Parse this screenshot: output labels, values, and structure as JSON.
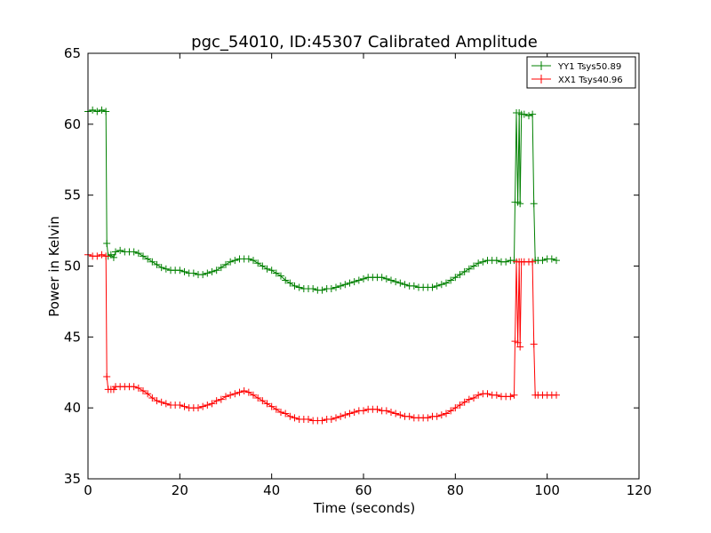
{
  "chart_data": {
    "type": "line",
    "title": "pgc_54010, ID:45307 Calibrated Amplitude",
    "xlabel": "Time (seconds)",
    "ylabel": "Power in Kelvin",
    "xlim": [
      0,
      120
    ],
    "ylim": [
      35,
      65
    ],
    "xticks": [
      "0",
      "20",
      "40",
      "60",
      "80",
      "100",
      "120"
    ],
    "yticks": [
      "35",
      "40",
      "45",
      "50",
      "55",
      "60",
      "65"
    ],
    "grid": false,
    "legend_position": "top-right",
    "marker": "+",
    "series": [
      {
        "name": "YY1 Tsys50.89",
        "color": "#008000",
        "points": [
          [
            0.0,
            60.9
          ],
          [
            1.0,
            61.0
          ],
          [
            2.0,
            60.9
          ],
          [
            3.0,
            61.0
          ],
          [
            3.9,
            60.9
          ],
          [
            4.1,
            51.6
          ],
          [
            4.4,
            50.7
          ],
          [
            5.0,
            50.8
          ],
          [
            5.6,
            50.6
          ],
          [
            6.0,
            51.0
          ],
          [
            7.0,
            51.1
          ],
          [
            8.0,
            51.0
          ],
          [
            9.0,
            51.0
          ],
          [
            10.0,
            51.0
          ],
          [
            11.0,
            50.9
          ],
          [
            12.0,
            50.7
          ],
          [
            13.0,
            50.5
          ],
          [
            14.0,
            50.3
          ],
          [
            15.0,
            50.1
          ],
          [
            16.0,
            49.9
          ],
          [
            17.0,
            49.8
          ],
          [
            18.0,
            49.7
          ],
          [
            19.0,
            49.7
          ],
          [
            20.0,
            49.7
          ],
          [
            21.0,
            49.6
          ],
          [
            22.0,
            49.5
          ],
          [
            23.0,
            49.5
          ],
          [
            24.0,
            49.4
          ],
          [
            25.0,
            49.4
          ],
          [
            26.0,
            49.5
          ],
          [
            27.0,
            49.6
          ],
          [
            28.0,
            49.7
          ],
          [
            29.0,
            49.9
          ],
          [
            30.0,
            50.1
          ],
          [
            31.0,
            50.3
          ],
          [
            32.0,
            50.4
          ],
          [
            33.0,
            50.5
          ],
          [
            34.0,
            50.5
          ],
          [
            35.0,
            50.5
          ],
          [
            36.0,
            50.4
          ],
          [
            37.0,
            50.2
          ],
          [
            38.0,
            50.0
          ],
          [
            39.0,
            49.8
          ],
          [
            40.0,
            49.7
          ],
          [
            41.0,
            49.5
          ],
          [
            42.0,
            49.3
          ],
          [
            43.0,
            49.0
          ],
          [
            44.0,
            48.8
          ],
          [
            45.0,
            48.6
          ],
          [
            46.0,
            48.5
          ],
          [
            47.0,
            48.4
          ],
          [
            48.0,
            48.4
          ],
          [
            49.0,
            48.4
          ],
          [
            50.0,
            48.3
          ],
          [
            51.0,
            48.3
          ],
          [
            52.0,
            48.4
          ],
          [
            53.0,
            48.4
          ],
          [
            54.0,
            48.5
          ],
          [
            55.0,
            48.6
          ],
          [
            56.0,
            48.7
          ],
          [
            57.0,
            48.8
          ],
          [
            58.0,
            48.9
          ],
          [
            59.0,
            49.0
          ],
          [
            60.0,
            49.1
          ],
          [
            61.0,
            49.2
          ],
          [
            62.0,
            49.2
          ],
          [
            63.0,
            49.2
          ],
          [
            64.0,
            49.2
          ],
          [
            65.0,
            49.1
          ],
          [
            66.0,
            49.0
          ],
          [
            67.0,
            48.9
          ],
          [
            68.0,
            48.8
          ],
          [
            69.0,
            48.7
          ],
          [
            70.0,
            48.6
          ],
          [
            71.0,
            48.6
          ],
          [
            72.0,
            48.5
          ],
          [
            73.0,
            48.5
          ],
          [
            74.0,
            48.5
          ],
          [
            75.0,
            48.5
          ],
          [
            76.0,
            48.6
          ],
          [
            77.0,
            48.7
          ],
          [
            78.0,
            48.8
          ],
          [
            79.0,
            49.0
          ],
          [
            80.0,
            49.2
          ],
          [
            81.0,
            49.4
          ],
          [
            82.0,
            49.6
          ],
          [
            83.0,
            49.8
          ],
          [
            84.0,
            50.0
          ],
          [
            85.0,
            50.2
          ],
          [
            86.0,
            50.3
          ],
          [
            87.0,
            50.4
          ],
          [
            88.0,
            50.4
          ],
          [
            89.0,
            50.4
          ],
          [
            90.0,
            50.3
          ],
          [
            91.0,
            50.3
          ],
          [
            92.0,
            50.4
          ],
          [
            92.8,
            50.4
          ],
          [
            93.0,
            54.5
          ],
          [
            93.3,
            60.8
          ],
          [
            93.6,
            54.5
          ],
          [
            93.9,
            60.8
          ],
          [
            94.1,
            54.4
          ],
          [
            94.4,
            60.7
          ],
          [
            95.0,
            60.7
          ],
          [
            96.0,
            60.6
          ],
          [
            96.8,
            60.7
          ],
          [
            97.1,
            54.4
          ],
          [
            97.4,
            50.4
          ],
          [
            98.0,
            50.4
          ],
          [
            99.0,
            50.4
          ],
          [
            100.0,
            50.5
          ],
          [
            101.0,
            50.5
          ],
          [
            102.0,
            50.4
          ]
        ]
      },
      {
        "name": "XX1 Tsys40.96",
        "color": "#ff0000",
        "points": [
          [
            0.0,
            50.8
          ],
          [
            1.0,
            50.7
          ],
          [
            2.0,
            50.7
          ],
          [
            3.0,
            50.8
          ],
          [
            3.9,
            50.7
          ],
          [
            4.1,
            42.2
          ],
          [
            4.4,
            41.3
          ],
          [
            5.0,
            41.3
          ],
          [
            5.6,
            41.3
          ],
          [
            6.0,
            41.5
          ],
          [
            7.0,
            41.5
          ],
          [
            8.0,
            41.5
          ],
          [
            9.0,
            41.5
          ],
          [
            10.0,
            41.5
          ],
          [
            11.0,
            41.4
          ],
          [
            12.0,
            41.2
          ],
          [
            13.0,
            41.0
          ],
          [
            14.0,
            40.7
          ],
          [
            15.0,
            40.5
          ],
          [
            16.0,
            40.4
          ],
          [
            17.0,
            40.3
          ],
          [
            18.0,
            40.2
          ],
          [
            19.0,
            40.2
          ],
          [
            20.0,
            40.2
          ],
          [
            21.0,
            40.1
          ],
          [
            22.0,
            40.0
          ],
          [
            23.0,
            40.0
          ],
          [
            24.0,
            40.0
          ],
          [
            25.0,
            40.1
          ],
          [
            26.0,
            40.2
          ],
          [
            27.0,
            40.3
          ],
          [
            28.0,
            40.5
          ],
          [
            29.0,
            40.6
          ],
          [
            30.0,
            40.8
          ],
          [
            31.0,
            40.9
          ],
          [
            32.0,
            41.0
          ],
          [
            33.0,
            41.1
          ],
          [
            34.0,
            41.2
          ],
          [
            35.0,
            41.1
          ],
          [
            36.0,
            40.9
          ],
          [
            37.0,
            40.7
          ],
          [
            38.0,
            40.5
          ],
          [
            39.0,
            40.3
          ],
          [
            40.0,
            40.1
          ],
          [
            41.0,
            39.9
          ],
          [
            42.0,
            39.7
          ],
          [
            43.0,
            39.6
          ],
          [
            44.0,
            39.4
          ],
          [
            45.0,
            39.3
          ],
          [
            46.0,
            39.2
          ],
          [
            47.0,
            39.2
          ],
          [
            48.0,
            39.2
          ],
          [
            49.0,
            39.1
          ],
          [
            50.0,
            39.1
          ],
          [
            51.0,
            39.1
          ],
          [
            52.0,
            39.2
          ],
          [
            53.0,
            39.2
          ],
          [
            54.0,
            39.3
          ],
          [
            55.0,
            39.4
          ],
          [
            56.0,
            39.5
          ],
          [
            57.0,
            39.6
          ],
          [
            58.0,
            39.7
          ],
          [
            59.0,
            39.8
          ],
          [
            60.0,
            39.8
          ],
          [
            61.0,
            39.9
          ],
          [
            62.0,
            39.9
          ],
          [
            63.0,
            39.9
          ],
          [
            64.0,
            39.8
          ],
          [
            65.0,
            39.8
          ],
          [
            66.0,
            39.7
          ],
          [
            67.0,
            39.6
          ],
          [
            68.0,
            39.5
          ],
          [
            69.0,
            39.4
          ],
          [
            70.0,
            39.4
          ],
          [
            71.0,
            39.3
          ],
          [
            72.0,
            39.3
          ],
          [
            73.0,
            39.3
          ],
          [
            74.0,
            39.3
          ],
          [
            75.0,
            39.4
          ],
          [
            76.0,
            39.4
          ],
          [
            77.0,
            39.5
          ],
          [
            78.0,
            39.6
          ],
          [
            79.0,
            39.8
          ],
          [
            80.0,
            40.0
          ],
          [
            81.0,
            40.2
          ],
          [
            82.0,
            40.4
          ],
          [
            83.0,
            40.6
          ],
          [
            84.0,
            40.7
          ],
          [
            85.0,
            40.9
          ],
          [
            86.0,
            41.0
          ],
          [
            87.0,
            41.0
          ],
          [
            88.0,
            40.9
          ],
          [
            89.0,
            40.9
          ],
          [
            90.0,
            40.8
          ],
          [
            91.0,
            40.8
          ],
          [
            92.0,
            40.8
          ],
          [
            92.8,
            40.9
          ],
          [
            93.0,
            44.7
          ],
          [
            93.3,
            50.3
          ],
          [
            93.6,
            44.6
          ],
          [
            93.9,
            50.3
          ],
          [
            94.1,
            44.3
          ],
          [
            94.4,
            50.3
          ],
          [
            95.0,
            50.3
          ],
          [
            96.0,
            50.3
          ],
          [
            96.8,
            50.3
          ],
          [
            97.1,
            44.5
          ],
          [
            97.4,
            40.9
          ],
          [
            98.0,
            40.9
          ],
          [
            99.0,
            40.9
          ],
          [
            100.0,
            40.9
          ],
          [
            101.0,
            40.9
          ],
          [
            102.0,
            40.9
          ]
        ]
      }
    ]
  }
}
